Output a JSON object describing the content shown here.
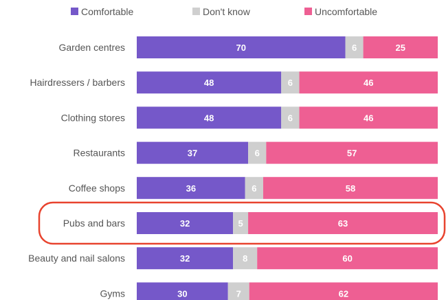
{
  "chart_data": {
    "type": "bar",
    "orientation": "horizontal",
    "stacked": true,
    "percent_stacked": true,
    "categories": [
      "Garden centres",
      "Hairdressers / barbers",
      "Clothing stores",
      "Restaurants",
      "Coffee shops",
      "Pubs and bars",
      "Beauty and nail salons",
      "Gyms"
    ],
    "series": [
      {
        "name": "Comfortable",
        "color": "#7558c9",
        "values": [
          70,
          48,
          48,
          37,
          36,
          32,
          32,
          30
        ]
      },
      {
        "name": "Don't know",
        "color": "#cfcfcf",
        "values": [
          6,
          6,
          6,
          6,
          6,
          5,
          8,
          7
        ]
      },
      {
        "name": "Uncomfortable",
        "color": "#ee5f93",
        "values": [
          25,
          46,
          46,
          57,
          58,
          63,
          60,
          62
        ]
      }
    ],
    "legend_position": "top",
    "highlighted_category": "Pubs and bars",
    "highlight_color": "#e8432e",
    "grid": false
  }
}
